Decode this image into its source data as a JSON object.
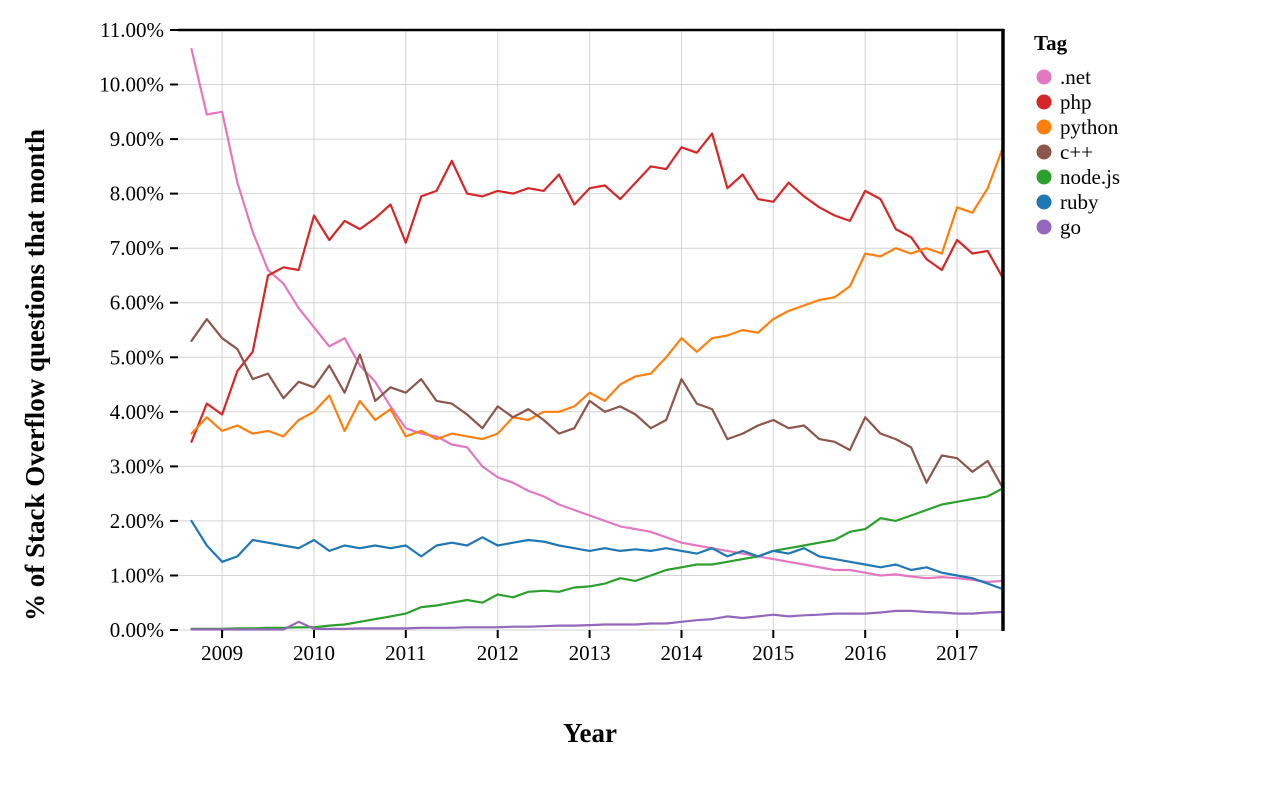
{
  "chart_data": {
    "type": "line",
    "title": "",
    "xlabel": "Year",
    "ylabel": "% of Stack Overflow questions that month",
    "legend_title": "Tag",
    "legend_position": "right",
    "grid": true,
    "grid_color": "#d3d3d3",
    "border_color": "#000000",
    "xlim": [
      2008.52,
      2017.5
    ],
    "ylim": [
      0,
      11
    ],
    "x_start": 2008.6667,
    "x_step": 0.16667,
    "x_ticks": [
      2009,
      2010,
      2011,
      2012,
      2013,
      2014,
      2015,
      2016,
      2017
    ],
    "y_tick_values": [
      0,
      1,
      2,
      3,
      4,
      5,
      6,
      7,
      8,
      9,
      10,
      11
    ],
    "y_tick_labels": [
      "0.00%",
      "1.00%",
      "2.00%",
      "3.00%",
      "4.00%",
      "5.00%",
      "6.00%",
      "7.00%",
      "8.00%",
      "9.00%",
      "10.00%",
      "11.00%"
    ],
    "series": [
      {
        "name": ".net",
        "color": "#e377c2",
        "values": [
          10.65,
          9.45,
          9.5,
          8.2,
          7.3,
          6.6,
          6.35,
          5.9,
          5.55,
          5.2,
          5.35,
          4.85,
          4.55,
          4.1,
          3.7,
          3.6,
          3.55,
          3.4,
          3.35,
          3.0,
          2.8,
          2.7,
          2.55,
          2.45,
          2.3,
          2.2,
          2.1,
          2.0,
          1.9,
          1.85,
          1.8,
          1.7,
          1.6,
          1.55,
          1.5,
          1.45,
          1.4,
          1.35,
          1.3,
          1.25,
          1.2,
          1.15,
          1.1,
          1.1,
          1.05,
          1.0,
          1.02,
          0.98,
          0.95,
          0.97,
          0.95,
          0.92,
          0.88,
          0.9
        ]
      },
      {
        "name": "php",
        "color": "#d62728",
        "values": [
          3.45,
          4.15,
          3.95,
          4.75,
          5.1,
          6.5,
          6.65,
          6.6,
          7.6,
          7.15,
          7.5,
          7.35,
          7.55,
          7.8,
          7.1,
          7.95,
          8.05,
          8.6,
          8.0,
          7.95,
          8.05,
          8.0,
          8.1,
          8.05,
          8.35,
          7.8,
          8.1,
          8.15,
          7.9,
          8.2,
          8.5,
          8.45,
          8.85,
          8.75,
          9.1,
          8.1,
          8.35,
          7.9,
          7.85,
          8.2,
          7.95,
          7.75,
          7.6,
          7.5,
          8.05,
          7.9,
          7.35,
          7.2,
          6.8,
          6.6,
          7.15,
          6.9,
          6.95,
          6.45
        ]
      },
      {
        "name": "python",
        "color": "#ff7f0e",
        "values": [
          3.6,
          3.9,
          3.65,
          3.75,
          3.6,
          3.65,
          3.55,
          3.85,
          4.0,
          4.3,
          3.65,
          4.2,
          3.85,
          4.05,
          3.55,
          3.65,
          3.5,
          3.6,
          3.55,
          3.5,
          3.6,
          3.9,
          3.85,
          4.0,
          4.0,
          4.1,
          4.35,
          4.2,
          4.5,
          4.65,
          4.7,
          5.0,
          5.35,
          5.1,
          5.35,
          5.4,
          5.5,
          5.45,
          5.7,
          5.85,
          5.95,
          6.05,
          6.1,
          6.3,
          6.9,
          6.85,
          7.0,
          6.9,
          7.0,
          6.9,
          7.75,
          7.65,
          8.1,
          8.85
        ]
      },
      {
        "name": "c++",
        "color": "#8c564b",
        "values": [
          5.3,
          5.7,
          5.35,
          5.15,
          4.6,
          4.7,
          4.25,
          4.55,
          4.45,
          4.85,
          4.35,
          5.05,
          4.2,
          4.45,
          4.35,
          4.6,
          4.2,
          4.15,
          3.95,
          3.7,
          4.1,
          3.9,
          4.05,
          3.85,
          3.6,
          3.7,
          4.2,
          4.0,
          4.1,
          3.95,
          3.7,
          3.85,
          4.6,
          4.15,
          4.05,
          3.5,
          3.6,
          3.75,
          3.85,
          3.7,
          3.75,
          3.5,
          3.45,
          3.3,
          3.9,
          3.6,
          3.5,
          3.35,
          2.7,
          3.2,
          3.15,
          2.9,
          3.1,
          2.6
        ]
      },
      {
        "name": "node.js",
        "color": "#2ca02c",
        "values": [
          0.02,
          0.02,
          0.02,
          0.03,
          0.03,
          0.04,
          0.04,
          0.05,
          0.05,
          0.08,
          0.1,
          0.15,
          0.2,
          0.25,
          0.3,
          0.42,
          0.45,
          0.5,
          0.55,
          0.5,
          0.65,
          0.6,
          0.7,
          0.72,
          0.7,
          0.78,
          0.8,
          0.85,
          0.95,
          0.9,
          1.0,
          1.1,
          1.15,
          1.2,
          1.2,
          1.25,
          1.3,
          1.35,
          1.45,
          1.5,
          1.55,
          1.6,
          1.65,
          1.8,
          1.85,
          2.05,
          2.0,
          2.1,
          2.2,
          2.3,
          2.35,
          2.4,
          2.45,
          2.6
        ]
      },
      {
        "name": "ruby",
        "color": "#1f77b4",
        "values": [
          2.0,
          1.55,
          1.25,
          1.35,
          1.65,
          1.6,
          1.55,
          1.5,
          1.65,
          1.45,
          1.55,
          1.5,
          1.55,
          1.5,
          1.55,
          1.35,
          1.55,
          1.6,
          1.55,
          1.7,
          1.55,
          1.6,
          1.65,
          1.62,
          1.55,
          1.5,
          1.45,
          1.5,
          1.45,
          1.48,
          1.45,
          1.5,
          1.45,
          1.4,
          1.5,
          1.35,
          1.45,
          1.35,
          1.45,
          1.4,
          1.5,
          1.35,
          1.3,
          1.25,
          1.2,
          1.15,
          1.2,
          1.1,
          1.15,
          1.05,
          1.0,
          0.95,
          0.85,
          0.75
        ]
      },
      {
        "name": "go",
        "color": "#9467bd",
        "values": [
          0.01,
          0.01,
          0.01,
          0.01,
          0.01,
          0.01,
          0.01,
          0.15,
          0.02,
          0.02,
          0.02,
          0.03,
          0.03,
          0.03,
          0.03,
          0.04,
          0.04,
          0.04,
          0.05,
          0.05,
          0.05,
          0.06,
          0.06,
          0.07,
          0.08,
          0.08,
          0.09,
          0.1,
          0.1,
          0.1,
          0.12,
          0.12,
          0.15,
          0.18,
          0.2,
          0.25,
          0.22,
          0.25,
          0.28,
          0.25,
          0.27,
          0.28,
          0.3,
          0.3,
          0.3,
          0.32,
          0.35,
          0.35,
          0.33,
          0.32,
          0.3,
          0.3,
          0.32,
          0.33
        ]
      }
    ]
  }
}
